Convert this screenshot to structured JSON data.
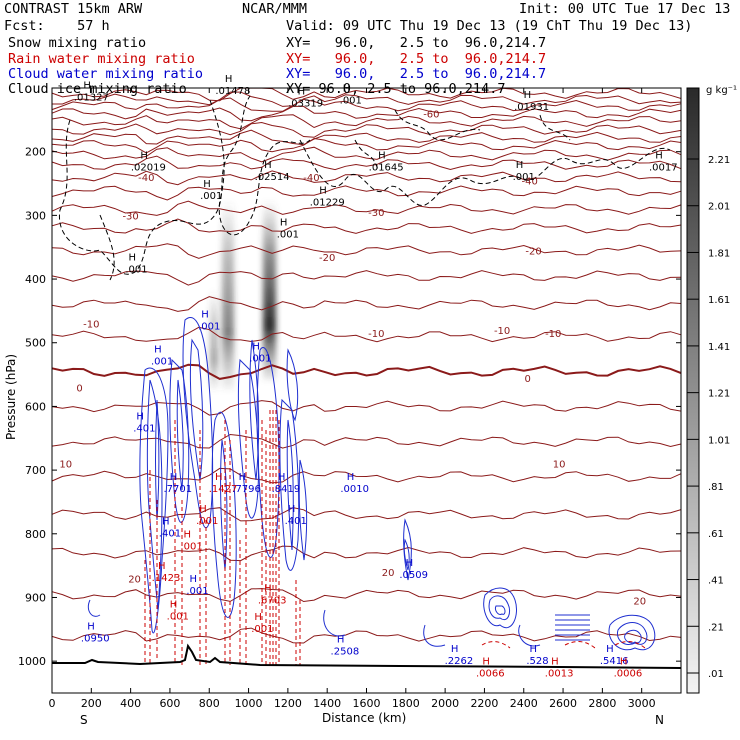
{
  "header": {
    "model": "CONTRAST 15km ARW",
    "center": "NCAR/MMM",
    "init": "Init: 00 UTC Tue 17 Dec 13",
    "fcst": "Fcst:    57 h",
    "valid": "Valid: 09 UTC Thu 19 Dec 13 (19 ChT Thu 19 Dec 13)"
  },
  "fields": [
    {
      "name": "Snow mixing ratio",
      "xy": "XY=   96.0,   2.5 to  96.0,214.7",
      "color": "#000000"
    },
    {
      "name": "Rain water mixing ratio",
      "xy": "XY=   96.0,   2.5 to  96.0,214.7",
      "color": "#cc0000"
    },
    {
      "name": "Cloud water mixing ratio",
      "xy": "XY=   96.0,   2.5 to  96.0,214.7",
      "color": "#0000cc"
    },
    {
      "name": "Cloud ice mixing ratio",
      "xy": "XY=   96.0,   2.5 to  96.0,214.7",
      "color": "#000000"
    }
  ],
  "chart_data": {
    "type": "cross-section",
    "xlabel": "Distance (km)",
    "ylabel": "Pressure (hPa)",
    "xlim": [
      0,
      3200
    ],
    "ylim": [
      1050,
      100
    ],
    "xticks": [
      0,
      200,
      400,
      600,
      800,
      1000,
      1200,
      1400,
      1600,
      1800,
      2000,
      2200,
      2400,
      2600,
      2800,
      3000
    ],
    "yticks": [
      200,
      300,
      400,
      500,
      600,
      700,
      800,
      900,
      1000
    ],
    "left_end": "S",
    "right_end": "N",
    "colorbar": {
      "unit": "g kg⁻¹",
      "levels": [
        ".01",
        ".21",
        ".41",
        ".61",
        ".81",
        "1.01",
        "1.21",
        "1.41",
        "1.61",
        "1.81",
        "2.01",
        "2.21"
      ]
    },
    "temperature_contours": {
      "color": "#8b1a1a",
      "labels": [
        {
          "text": "-60",
          "x": 1930,
          "p": 140
        },
        {
          "text": "-40",
          "x": 480,
          "p": 240
        },
        {
          "text": "-40",
          "x": 1320,
          "p": 240
        },
        {
          "text": "-40",
          "x": 2430,
          "p": 245
        },
        {
          "text": "-30",
          "x": 400,
          "p": 300
        },
        {
          "text": "-30",
          "x": 1650,
          "p": 295
        },
        {
          "text": "-20",
          "x": 1400,
          "p": 365
        },
        {
          "text": "-20",
          "x": 2450,
          "p": 355
        },
        {
          "text": "-10",
          "x": 200,
          "p": 470
        },
        {
          "text": "-10",
          "x": 1650,
          "p": 485
        },
        {
          "text": "-10",
          "x": 2290,
          "p": 480
        },
        {
          "text": "-10",
          "x": 2550,
          "p": 485
        },
        {
          "text": "0",
          "x": 140,
          "p": 570
        },
        {
          "text": "0",
          "x": 2420,
          "p": 555
        },
        {
          "text": "10",
          "x": 70,
          "p": 690
        },
        {
          "text": "10",
          "x": 2580,
          "p": 690
        },
        {
          "text": "20",
          "x": 420,
          "p": 870
        },
        {
          "text": "20",
          "x": 1710,
          "p": 860
        },
        {
          "text": "20",
          "x": 2990,
          "p": 905
        }
      ]
    },
    "maxima": [
      {
        "label": ".01327",
        "x": 200,
        "p": 110,
        "color": "#000000"
      },
      {
        "label": ".01478",
        "x": 920,
        "p": 100,
        "color": "#000000"
      },
      {
        "label": ".03319",
        "x": 1290,
        "p": 120,
        "color": "#000000"
      },
      {
        "label": ".001",
        "x": 1520,
        "p": 115,
        "color": "#000000"
      },
      {
        "label": ".01931",
        "x": 2440,
        "p": 125,
        "color": "#000000"
      },
      {
        "label": ".02019",
        "x": 490,
        "p": 220,
        "color": "#000000"
      },
      {
        "label": ".01645",
        "x": 1700,
        "p": 220,
        "color": "#000000"
      },
      {
        "label": ".0017",
        "x": 3110,
        "p": 220,
        "color": "#000000"
      },
      {
        "label": ".02514",
        "x": 1120,
        "p": 235,
        "color": "#000000"
      },
      {
        "label": ".01229",
        "x": 1400,
        "p": 275,
        "color": "#000000"
      },
      {
        "label": ".001",
        "x": 810,
        "p": 265,
        "color": "#000000"
      },
      {
        "label": ".001",
        "x": 1200,
        "p": 325,
        "color": "#000000"
      },
      {
        "label": ".001",
        "x": 2400,
        "p": 235,
        "color": "#000000"
      },
      {
        "label": ".001",
        "x": 430,
        "p": 380,
        "color": "#000000"
      },
      {
        "label": ".001",
        "x": 800,
        "p": 470,
        "color": "#0000cc"
      },
      {
        "label": ".001",
        "x": 560,
        "p": 525,
        "color": "#0000cc"
      },
      {
        "label": ".001",
        "x": 1060,
        "p": 520,
        "color": "#0000cc"
      },
      {
        "label": ".401",
        "x": 470,
        "p": 630,
        "color": "#0000cc"
      },
      {
        "label": ".7701",
        "x": 640,
        "p": 725,
        "color": "#0000cc"
      },
      {
        "label": ".1427",
        "x": 870,
        "p": 725,
        "color": "#cc0000"
      },
      {
        "label": ".7796",
        "x": 990,
        "p": 725,
        "color": "#0000cc"
      },
      {
        "label": ".8419",
        "x": 1190,
        "p": 725,
        "color": "#0000cc"
      },
      {
        "label": ".0010",
        "x": 1540,
        "p": 725,
        "color": "#0000cc"
      },
      {
        "label": ".001",
        "x": 790,
        "p": 775,
        "color": "#cc0000"
      },
      {
        "label": ".401",
        "x": 1240,
        "p": 775,
        "color": "#0000cc"
      },
      {
        "label": ".401",
        "x": 600,
        "p": 795,
        "color": "#0000cc"
      },
      {
        "label": ".001",
        "x": 710,
        "p": 815,
        "color": "#cc0000"
      },
      {
        "label": ".0509",
        "x": 1840,
        "p": 860,
        "color": "#0000cc"
      },
      {
        "label": ".1423",
        "x": 580,
        "p": 865,
        "color": "#cc0000"
      },
      {
        "label": ".001",
        "x": 740,
        "p": 885,
        "color": "#0000cc"
      },
      {
        "label": ".6703",
        "x": 1120,
        "p": 900,
        "color": "#cc0000"
      },
      {
        "label": ".001",
        "x": 640,
        "p": 925,
        "color": "#cc0000"
      },
      {
        "label": ".001",
        "x": 1070,
        "p": 945,
        "color": "#cc0000"
      },
      {
        "label": ".0950",
        "x": 220,
        "p": 960,
        "color": "#0000cc"
      },
      {
        "label": ".2508",
        "x": 1490,
        "p": 980,
        "color": "#0000cc"
      },
      {
        "label": ".2262",
        "x": 2070,
        "p": 995,
        "color": "#0000cc"
      },
      {
        "label": ".528",
        "x": 2470,
        "p": 995,
        "color": "#0000cc"
      },
      {
        "label": ".5416",
        "x": 2860,
        "p": 995,
        "color": "#0000cc"
      },
      {
        "label": ".0066",
        "x": 2230,
        "p": 1015,
        "color": "#cc0000"
      },
      {
        "label": ".0013",
        "x": 2580,
        "p": 1015,
        "color": "#cc0000"
      },
      {
        "label": ".0006",
        "x": 2930,
        "p": 1015,
        "color": "#cc0000"
      }
    ]
  }
}
